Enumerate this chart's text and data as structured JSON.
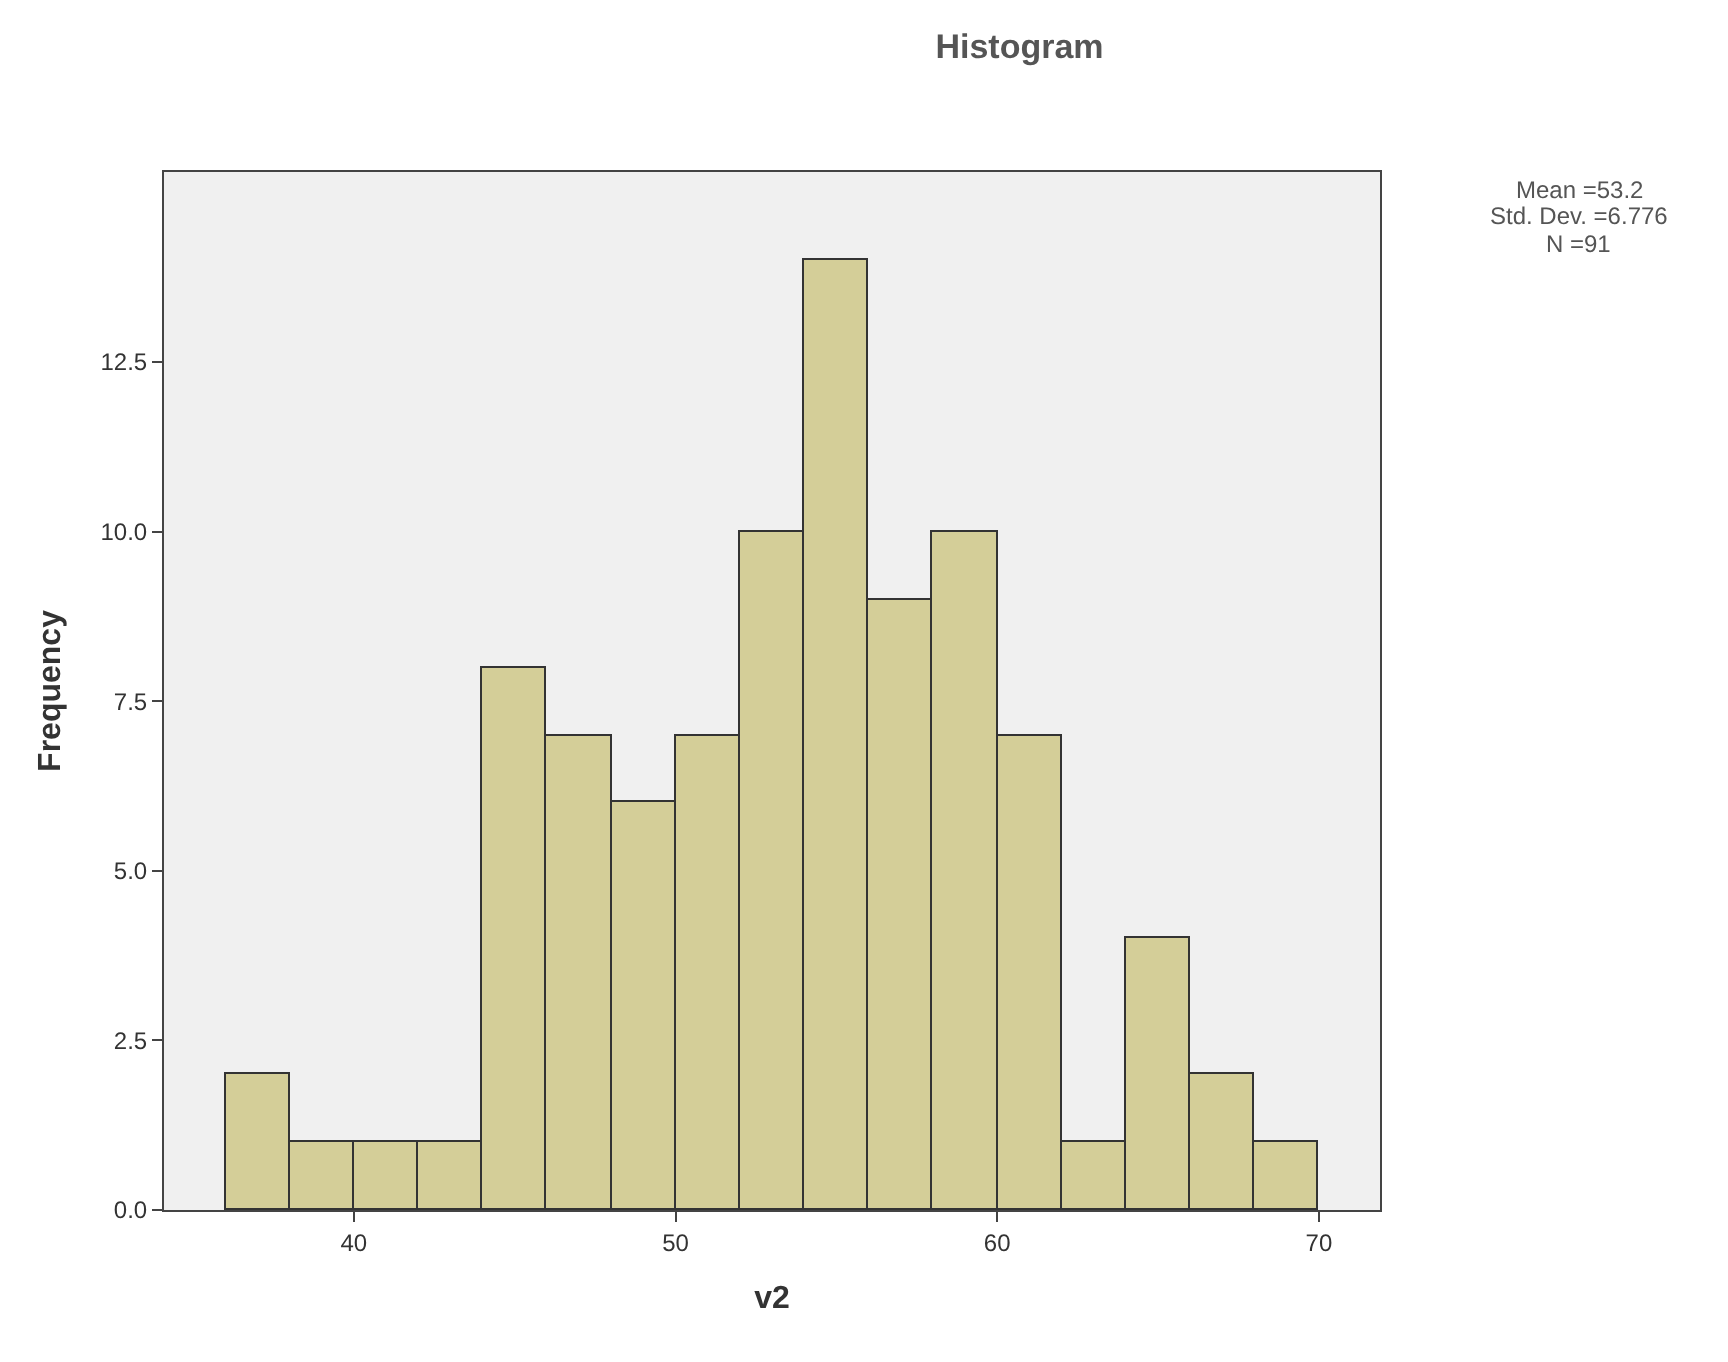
{
  "chart_data": {
    "type": "histogram",
    "title": "Histogram",
    "xlabel": "v2",
    "ylabel": "Frequency",
    "bins": [
      36,
      38,
      40,
      42,
      44,
      46,
      48,
      50,
      52,
      54,
      56,
      58,
      60,
      62,
      64,
      66,
      68,
      70
    ],
    "values": [
      2,
      1,
      1,
      1,
      8,
      7,
      6,
      7,
      10,
      14,
      9,
      10,
      7,
      1,
      4,
      2,
      1
    ],
    "color": "#d4ce98",
    "xlim": [
      34.1,
      71.9
    ],
    "xticks": [
      40,
      50,
      60,
      70
    ],
    "ylim": [
      0,
      15.3
    ],
    "yticks": [
      {
        "value": 0,
        "label": "0.0"
      },
      {
        "value": 2.5,
        "label": "2.5"
      },
      {
        "value": 5,
        "label": "5.0"
      },
      {
        "value": 7.5,
        "label": "7.5"
      },
      {
        "value": 10,
        "label": "10.0"
      },
      {
        "value": 12.5,
        "label": "12.5"
      }
    ],
    "grid": false,
    "annotations": [
      "Mean =53.2",
      "Std. Dev. =6.776",
      "N =91"
    ]
  }
}
